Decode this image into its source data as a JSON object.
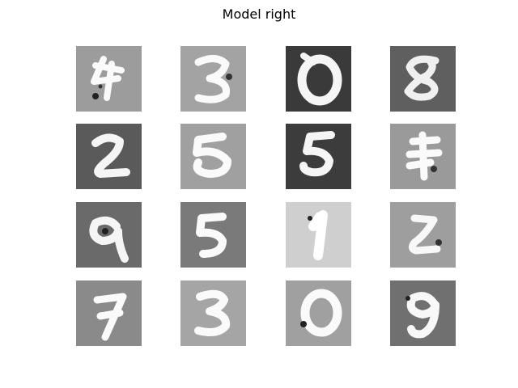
{
  "title": "Model right",
  "tiles": [
    {
      "digit": "4",
      "bg": "#9c9c9c"
    },
    {
      "digit": "3",
      "bg": "#a3a3a3"
    },
    {
      "digit": "0",
      "bg": "#3a3a3a"
    },
    {
      "digit": "8",
      "bg": "#5f5f5f"
    },
    {
      "digit": "2",
      "bg": "#5a5a5a"
    },
    {
      "digit": "5",
      "bg": "#a0a0a0"
    },
    {
      "digit": "5",
      "bg": "#3c3c3c"
    },
    {
      "digit": "4",
      "bg": "#9a9a9a"
    },
    {
      "digit": "9",
      "bg": "#6a6a6a"
    },
    {
      "digit": "5",
      "bg": "#7a7a7a"
    },
    {
      "digit": "1",
      "bg": "#cfcfcf"
    },
    {
      "digit": "2",
      "bg": "#9e9e9e"
    },
    {
      "digit": "7",
      "bg": "#8a8a8a"
    },
    {
      "digit": "3",
      "bg": "#a5a5a5"
    },
    {
      "digit": "0",
      "bg": "#a0a0a0"
    },
    {
      "digit": "9",
      "bg": "#707070"
    }
  ]
}
